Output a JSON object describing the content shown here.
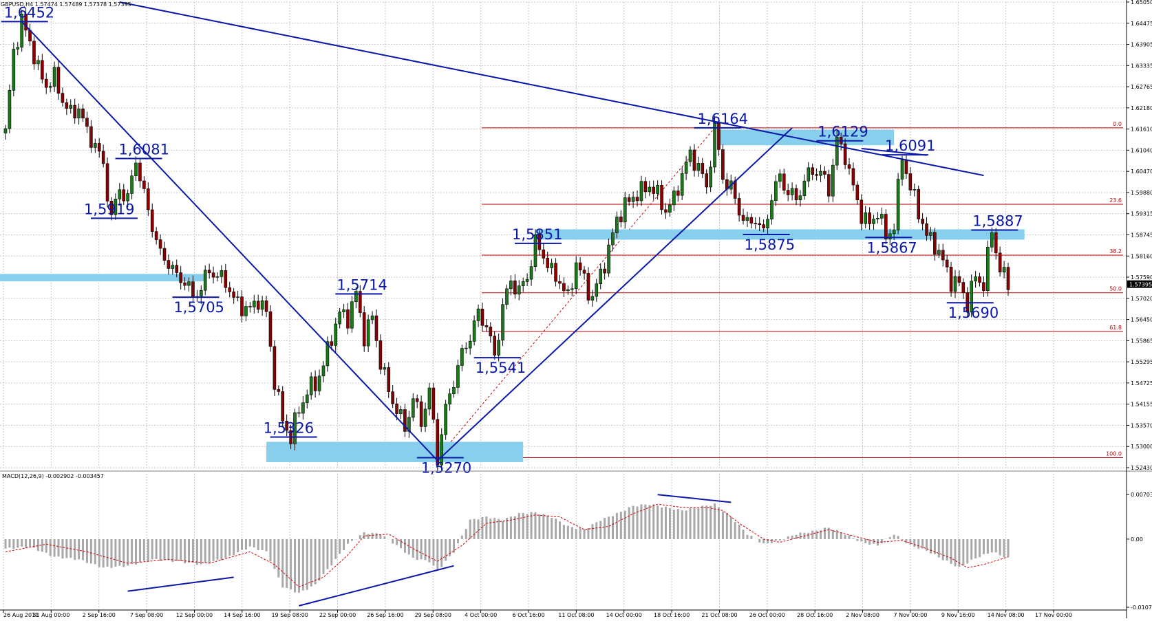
{
  "chart_data": [
    {
      "type": "candlestick",
      "header": "GBPUSD,H4  1.57474 1.57489 1.57378 1.57395",
      "last_price_label": "1.57395",
      "ylim": [
        1.5243,
        1.6505
      ],
      "y_ticks": [
        "1.65050",
        "1.64475",
        "1.63905",
        "1.63335",
        "1.62765",
        "1.62180",
        "1.61610",
        "1.61040",
        "1.60470",
        "1.59880",
        "1.59315",
        "1.58745",
        "1.58160",
        "1.57590",
        "1.57020",
        "1.56450",
        "1.55865",
        "1.55295",
        "1.54725",
        "1.54155",
        "1.53570",
        "1.53000",
        "1.52430"
      ],
      "x_ticks": [
        "26 Aug 2011",
        "31 Aug 00:00",
        "2 Sep 16:00",
        "7 Sep 08:00",
        "12 Sep 00:00",
        "14 Sep 16:00",
        "19 Sep 08:00",
        "22 Sep 00:00",
        "26 Sep 16:00",
        "29 Sep 08:00",
        "4 Oct 00:00",
        "6 Oct 16:00",
        "11 Oct 08:00",
        "14 Oct 00:00",
        "18 Oct 16:00",
        "21 Oct 08:00",
        "26 Oct 00:00",
        "28 Oct 16:00",
        "2 Nov 08:00",
        "7 Nov 00:00",
        "9 Nov 16:00",
        "14 Nov 08:00",
        "17 Nov 00:00"
      ],
      "price_path": [
        [
          0,
          1.615
        ],
        [
          2,
          1.637
        ],
        [
          4,
          1.6452
        ],
        [
          6,
          1.64
        ],
        [
          8,
          1.632
        ],
        [
          10,
          1.628
        ],
        [
          12,
          1.63
        ],
        [
          14,
          1.624
        ],
        [
          16,
          1.62
        ],
        [
          18,
          1.622
        ],
        [
          20,
          1.615
        ],
        [
          22,
          1.612
        ],
        [
          24,
          1.606
        ],
        [
          26,
          1.5919
        ],
        [
          28,
          1.6
        ],
        [
          30,
          1.597
        ],
        [
          32,
          1.6081
        ],
        [
          34,
          1.598
        ],
        [
          36,
          1.59
        ],
        [
          38,
          1.582
        ],
        [
          40,
          1.58
        ],
        [
          42,
          1.576
        ],
        [
          44,
          1.575
        ],
        [
          46,
          1.5705
        ],
        [
          48,
          1.573
        ],
        [
          50,
          1.578
        ],
        [
          52,
          1.576
        ],
        [
          54,
          1.575
        ],
        [
          56,
          1.5698
        ],
        [
          58,
          1.568
        ],
        [
          60,
          1.567
        ],
        [
          62,
          1.57
        ],
        [
          64,
          1.566
        ],
        [
          66,
          1.548
        ],
        [
          68,
          1.537
        ],
        [
          70,
          1.5326
        ],
        [
          72,
          1.54
        ],
        [
          74,
          1.545
        ],
        [
          76,
          1.547
        ],
        [
          78,
          1.552
        ],
        [
          80,
          1.56
        ],
        [
          82,
          1.566
        ],
        [
          84,
          1.565
        ],
        [
          86,
          1.5714
        ],
        [
          88,
          1.56
        ],
        [
          90,
          1.565
        ],
        [
          92,
          1.553
        ],
        [
          94,
          1.545
        ],
        [
          96,
          1.54
        ],
        [
          98,
          1.535
        ],
        [
          100,
          1.543
        ],
        [
          102,
          1.537
        ],
        [
          104,
          1.545
        ],
        [
          106,
          1.527
        ],
        [
          108,
          1.54
        ],
        [
          110,
          1.548
        ],
        [
          112,
          1.555
        ],
        [
          114,
          1.56
        ],
        [
          116,
          1.566
        ],
        [
          118,
          1.563
        ],
        [
          120,
          1.5541
        ],
        [
          122,
          1.568
        ],
        [
          124,
          1.575
        ],
        [
          126,
          1.572
        ],
        [
          128,
          1.576
        ],
        [
          130,
          1.5851
        ],
        [
          132,
          1.582
        ],
        [
          134,
          1.577
        ],
        [
          136,
          1.575
        ],
        [
          138,
          1.57
        ],
        [
          140,
          1.58
        ],
        [
          142,
          1.575
        ],
        [
          144,
          1.57
        ],
        [
          146,
          1.577
        ],
        [
          148,
          1.583
        ],
        [
          150,
          1.592
        ],
        [
          152,
          1.595
        ],
        [
          154,
          1.598
        ],
        [
          156,
          1.599
        ],
        [
          158,
          1.601
        ],
        [
          160,
          1.598
        ],
        [
          162,
          1.594
        ],
        [
          164,
          1.597
        ],
        [
          166,
          1.604
        ],
        [
          168,
          1.609
        ],
        [
          170,
          1.606
        ],
        [
          172,
          1.6
        ],
        [
          174,
          1.6164
        ],
        [
          176,
          1.603
        ],
        [
          178,
          1.6
        ],
        [
          180,
          1.594
        ],
        [
          182,
          1.59
        ],
        [
          184,
          1.592
        ],
        [
          186,
          1.5875
        ],
        [
          188,
          1.598
        ],
        [
          190,
          1.603
        ],
        [
          192,
          1.599
        ],
        [
          194,
          1.597
        ],
        [
          196,
          1.602
        ],
        [
          198,
          1.605
        ],
        [
          200,
          1.604
        ],
        [
          202,
          1.6
        ],
        [
          204,
          1.6129
        ],
        [
          206,
          1.609
        ],
        [
          208,
          1.6
        ],
        [
          210,
          1.593
        ],
        [
          212,
          1.59
        ],
        [
          214,
          1.594
        ],
        [
          216,
          1.5867
        ],
        [
          218,
          1.59
        ],
        [
          220,
          1.6091
        ],
        [
          222,
          1.6
        ],
        [
          224,
          1.594
        ],
        [
          226,
          1.587
        ],
        [
          228,
          1.585
        ],
        [
          230,
          1.58
        ],
        [
          232,
          1.575
        ],
        [
          234,
          1.574
        ],
        [
          236,
          1.569
        ],
        [
          238,
          1.576
        ],
        [
          240,
          1.574
        ],
        [
          242,
          1.5887
        ],
        [
          244,
          1.578
        ],
        [
          246,
          1.574
        ]
      ],
      "price_labels": [
        "1,6452",
        "1,6081",
        "1,5919",
        "1,5705",
        "1,5326",
        "1,5714",
        "1,5270",
        "1,5541",
        "1,5851",
        "1,6164",
        "1,6129",
        "1,6091",
        "1,5875",
        "1,5867",
        "1,5887",
        "1,5690"
      ],
      "fibonacci": [
        {
          "level": "0.0",
          "price": 1.6164
        },
        {
          "level": "23.6",
          "price": 1.5957
        },
        {
          "level": "38.2",
          "price": 1.5819
        },
        {
          "level": "50.0",
          "price": 1.5717
        },
        {
          "level": "61.8",
          "price": 1.5612
        },
        {
          "level": "100.0",
          "price": 1.527
        }
      ],
      "colors": {
        "up": "#1a7a1a",
        "down": "#8b0000",
        "lines": "#0a18a8",
        "zones": "#87cfec",
        "fib": "#c00000",
        "grid": "#c8c8c8"
      }
    },
    {
      "type": "bar",
      "header": "MACD(12,26,9) -0.002902 -0.003457",
      "y_ticks": [
        "0.007033",
        "0.00",
        "-0.01073"
      ],
      "ylim": [
        -0.01073,
        0.007033
      ],
      "histogram": [
        [
          0,
          -0.0015
        ],
        [
          6,
          -0.0012
        ],
        [
          12,
          -0.0028
        ],
        [
          18,
          -0.0032
        ],
        [
          24,
          -0.0045
        ],
        [
          30,
          -0.0042
        ],
        [
          36,
          -0.0032
        ],
        [
          42,
          -0.0035
        ],
        [
          48,
          -0.004
        ],
        [
          54,
          -0.003
        ],
        [
          60,
          -0.0012
        ],
        [
          64,
          -0.002
        ],
        [
          68,
          -0.0075
        ],
        [
          72,
          -0.0085
        ],
        [
          76,
          -0.0072
        ],
        [
          80,
          -0.004
        ],
        [
          84,
          -0.0008
        ],
        [
          88,
          0.001
        ],
        [
          92,
          0.0008
        ],
        [
          96,
          -0.001
        ],
        [
          100,
          -0.003
        ],
        [
          104,
          -0.0035
        ],
        [
          106,
          -0.005
        ],
        [
          110,
          -0.002
        ],
        [
          114,
          0.003
        ],
        [
          118,
          0.0035
        ],
        [
          122,
          0.003
        ],
        [
          126,
          0.004
        ],
        [
          130,
          0.0042
        ],
        [
          134,
          0.0035
        ],
        [
          138,
          0.002
        ],
        [
          142,
          0.0015
        ],
        [
          146,
          0.003
        ],
        [
          150,
          0.004
        ],
        [
          154,
          0.0052
        ],
        [
          158,
          0.0055
        ],
        [
          162,
          0.005
        ],
        [
          166,
          0.0045
        ],
        [
          170,
          0.005
        ],
        [
          174,
          0.0055
        ],
        [
          178,
          0.0035
        ],
        [
          182,
          0.0008
        ],
        [
          186,
          -0.0008
        ],
        [
          190,
          -0.0002
        ],
        [
          194,
          0.0008
        ],
        [
          198,
          0.0012
        ],
        [
          202,
          0.0018
        ],
        [
          206,
          0.0008
        ],
        [
          210,
          -0.0005
        ],
        [
          214,
          -0.001
        ],
        [
          218,
          0.0008
        ],
        [
          222,
          -0.001
        ],
        [
          226,
          -0.0018
        ],
        [
          230,
          -0.0032
        ],
        [
          234,
          -0.0045
        ],
        [
          238,
          -0.003
        ],
        [
          242,
          -0.002
        ],
        [
          246,
          -0.003
        ]
      ],
      "signal": [
        [
          0,
          -0.002
        ],
        [
          10,
          -0.0008
        ],
        [
          20,
          -0.002
        ],
        [
          30,
          -0.0038
        ],
        [
          40,
          -0.0032
        ],
        [
          50,
          -0.0038
        ],
        [
          60,
          -0.002
        ],
        [
          66,
          -0.004
        ],
        [
          72,
          -0.0075
        ],
        [
          78,
          -0.006
        ],
        [
          84,
          -0.0025
        ],
        [
          88,
          0.0005
        ],
        [
          94,
          0.0008
        ],
        [
          100,
          -0.0015
        ],
        [
          106,
          -0.0035
        ],
        [
          112,
          -0.001
        ],
        [
          118,
          0.0025
        ],
        [
          124,
          0.003
        ],
        [
          130,
          0.0038
        ],
        [
          136,
          0.0035
        ],
        [
          142,
          0.0015
        ],
        [
          148,
          0.002
        ],
        [
          154,
          0.004
        ],
        [
          160,
          0.0055
        ],
        [
          166,
          0.005
        ],
        [
          172,
          0.005
        ],
        [
          176,
          0.0045
        ],
        [
          180,
          0.0025
        ],
        [
          186,
          0.0
        ],
        [
          190,
          -0.0005
        ],
        [
          196,
          0.0005
        ],
        [
          202,
          0.0015
        ],
        [
          208,
          0.0005
        ],
        [
          214,
          -0.0005
        ],
        [
          220,
          -0.0002
        ],
        [
          226,
          -0.0015
        ],
        [
          232,
          -0.003
        ],
        [
          236,
          -0.0045
        ],
        [
          240,
          -0.004
        ],
        [
          246,
          -0.0028
        ]
      ]
    }
  ]
}
